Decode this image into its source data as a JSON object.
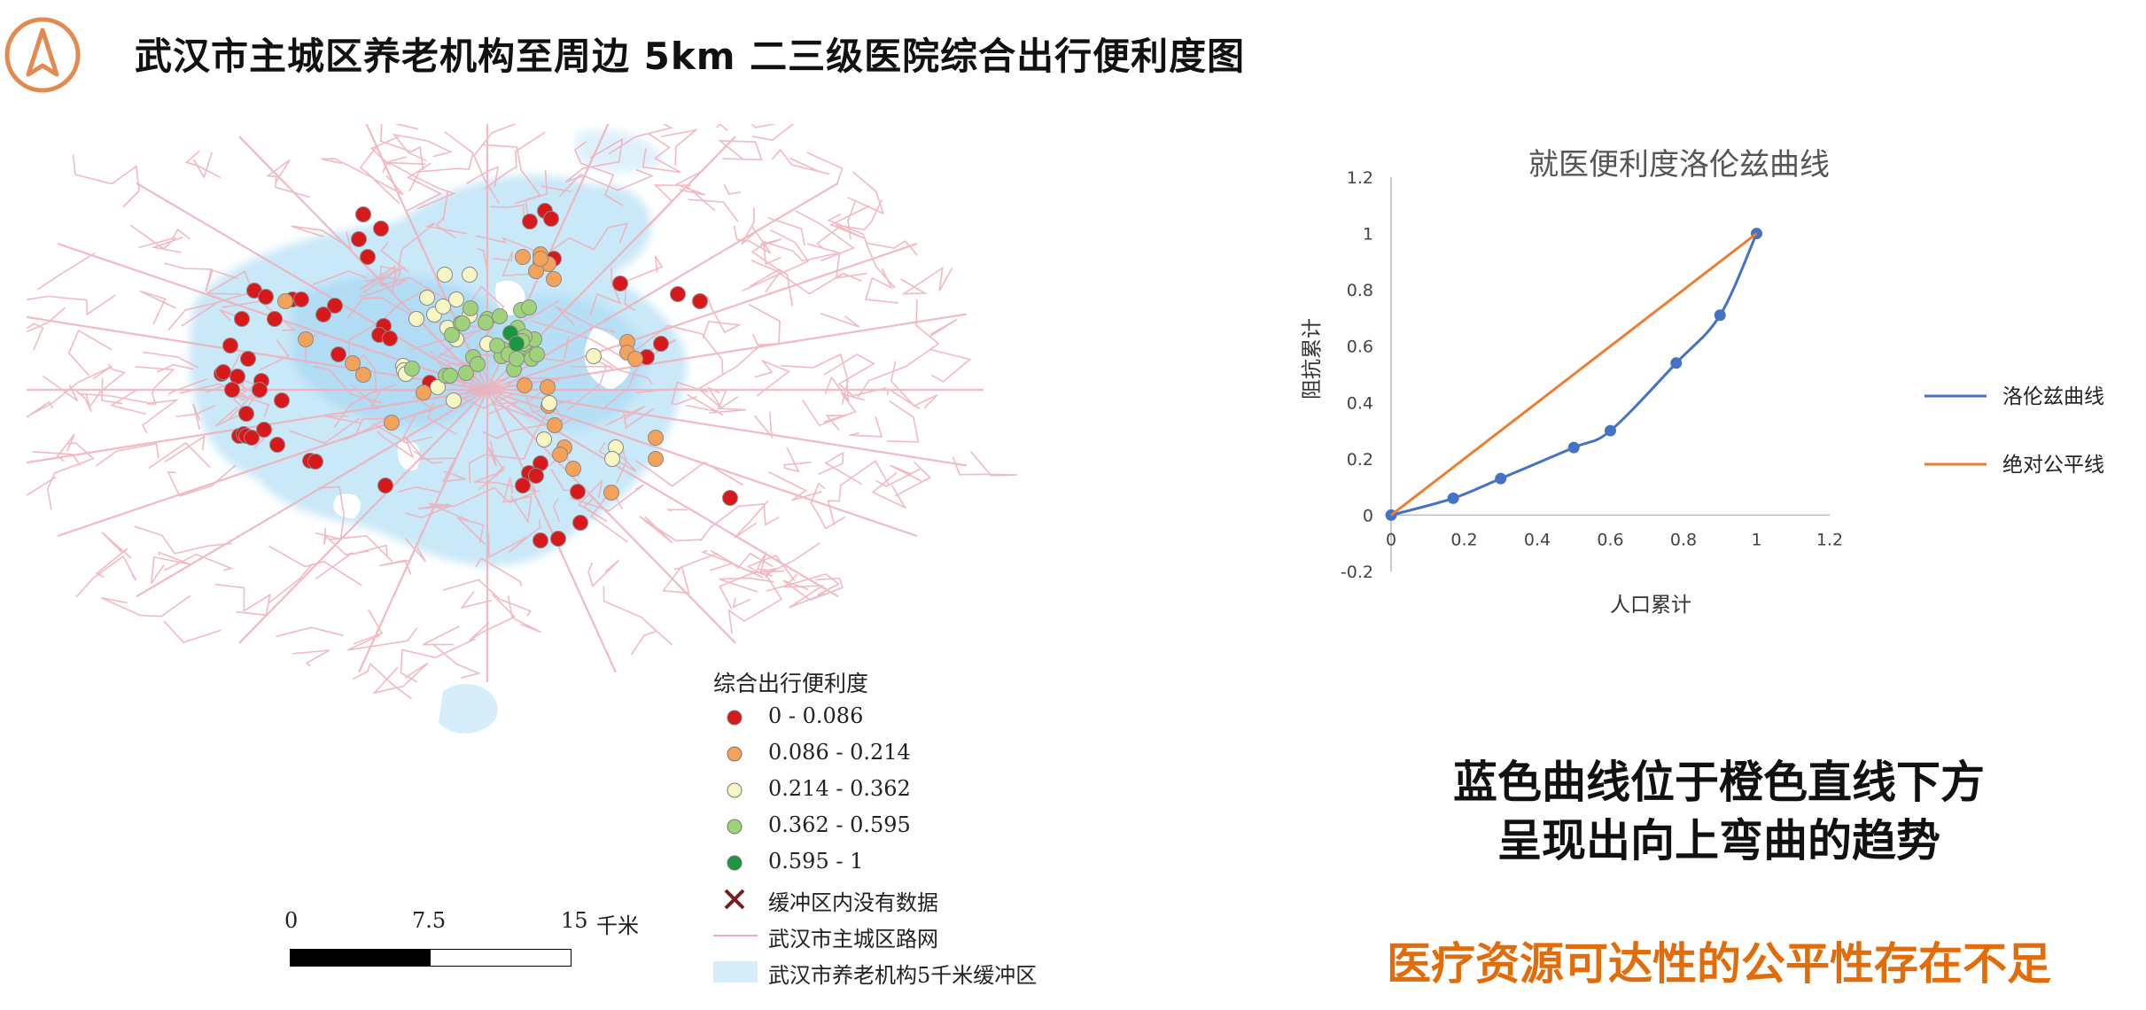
{
  "title": "武汉市主城区养老机构至周边 5km 二三级医院综合出行便利度图",
  "colors": {
    "accent": "#e36c0a",
    "road": "#f0aeb8",
    "buffer": "#bfe4f7",
    "lorenz": "#4472c4",
    "equality": "#ed7d31",
    "class1": "#d7191c",
    "class2": "#f4a259",
    "class3": "#f6f6c2",
    "class4": "#9fd27a",
    "class5": "#1a9641",
    "nodata": "#7b1d1d"
  },
  "legend": {
    "title": "综合出行便利度",
    "items": [
      {
        "label": "0 - 0.086",
        "symbol": "dot",
        "color": "#d7191c"
      },
      {
        "label": "0.086 - 0.214",
        "symbol": "dot",
        "color": "#f4a259"
      },
      {
        "label": "0.214 - 0.362",
        "symbol": "dot",
        "color": "#f6f6c2"
      },
      {
        "label": "0.362 - 0.595",
        "symbol": "dot",
        "color": "#9fd27a"
      },
      {
        "label": "0.595 - 1",
        "symbol": "dot",
        "color": "#1a9641"
      },
      {
        "label": "缓冲区内没有数据",
        "symbol": "cross",
        "color": "#7b1d1d"
      },
      {
        "label": "武汉市主城区路网",
        "symbol": "line",
        "color": "#f0aeb8"
      },
      {
        "label": "武汉市养老机构5千米缓冲区",
        "symbol": "area",
        "color": "#d6eefa"
      }
    ]
  },
  "scalebar": {
    "ticks": [
      "0",
      "7.5",
      "15"
    ],
    "unit": "千米"
  },
  "conclusion": {
    "line1": "蓝色曲线位于橙色直线下方",
    "line2": "呈现出向上弯曲的趋势",
    "highlight": "医疗资源可达性的公平性存在不足"
  },
  "chart_data": {
    "type": "line",
    "title": "就医便利度洛伦兹曲线",
    "xlabel": "人口累计",
    "ylabel": "阻抗累计",
    "xlim": [
      0,
      1.2
    ],
    "ylim": [
      -0.2,
      1.2
    ],
    "xticks": [
      "0",
      "0.2",
      "0.4",
      "0.6",
      "0.8",
      "1",
      "1.2"
    ],
    "yticks": [
      "-0.2",
      "0",
      "0.2",
      "0.4",
      "0.6",
      "0.8",
      "1",
      "1.2"
    ],
    "legend_position": "right",
    "grid": false,
    "series": [
      {
        "name": "洛伦兹曲线",
        "color": "#4472c4",
        "x": [
          0,
          0.17,
          0.3,
          0.5,
          0.6,
          0.78,
          0.9,
          1.0
        ],
        "y": [
          0,
          0.06,
          0.13,
          0.24,
          0.3,
          0.54,
          0.71,
          1.0
        ]
      },
      {
        "name": "绝对公平线",
        "color": "#ed7d31",
        "x": [
          0,
          1
        ],
        "y": [
          0,
          1
        ]
      }
    ]
  }
}
